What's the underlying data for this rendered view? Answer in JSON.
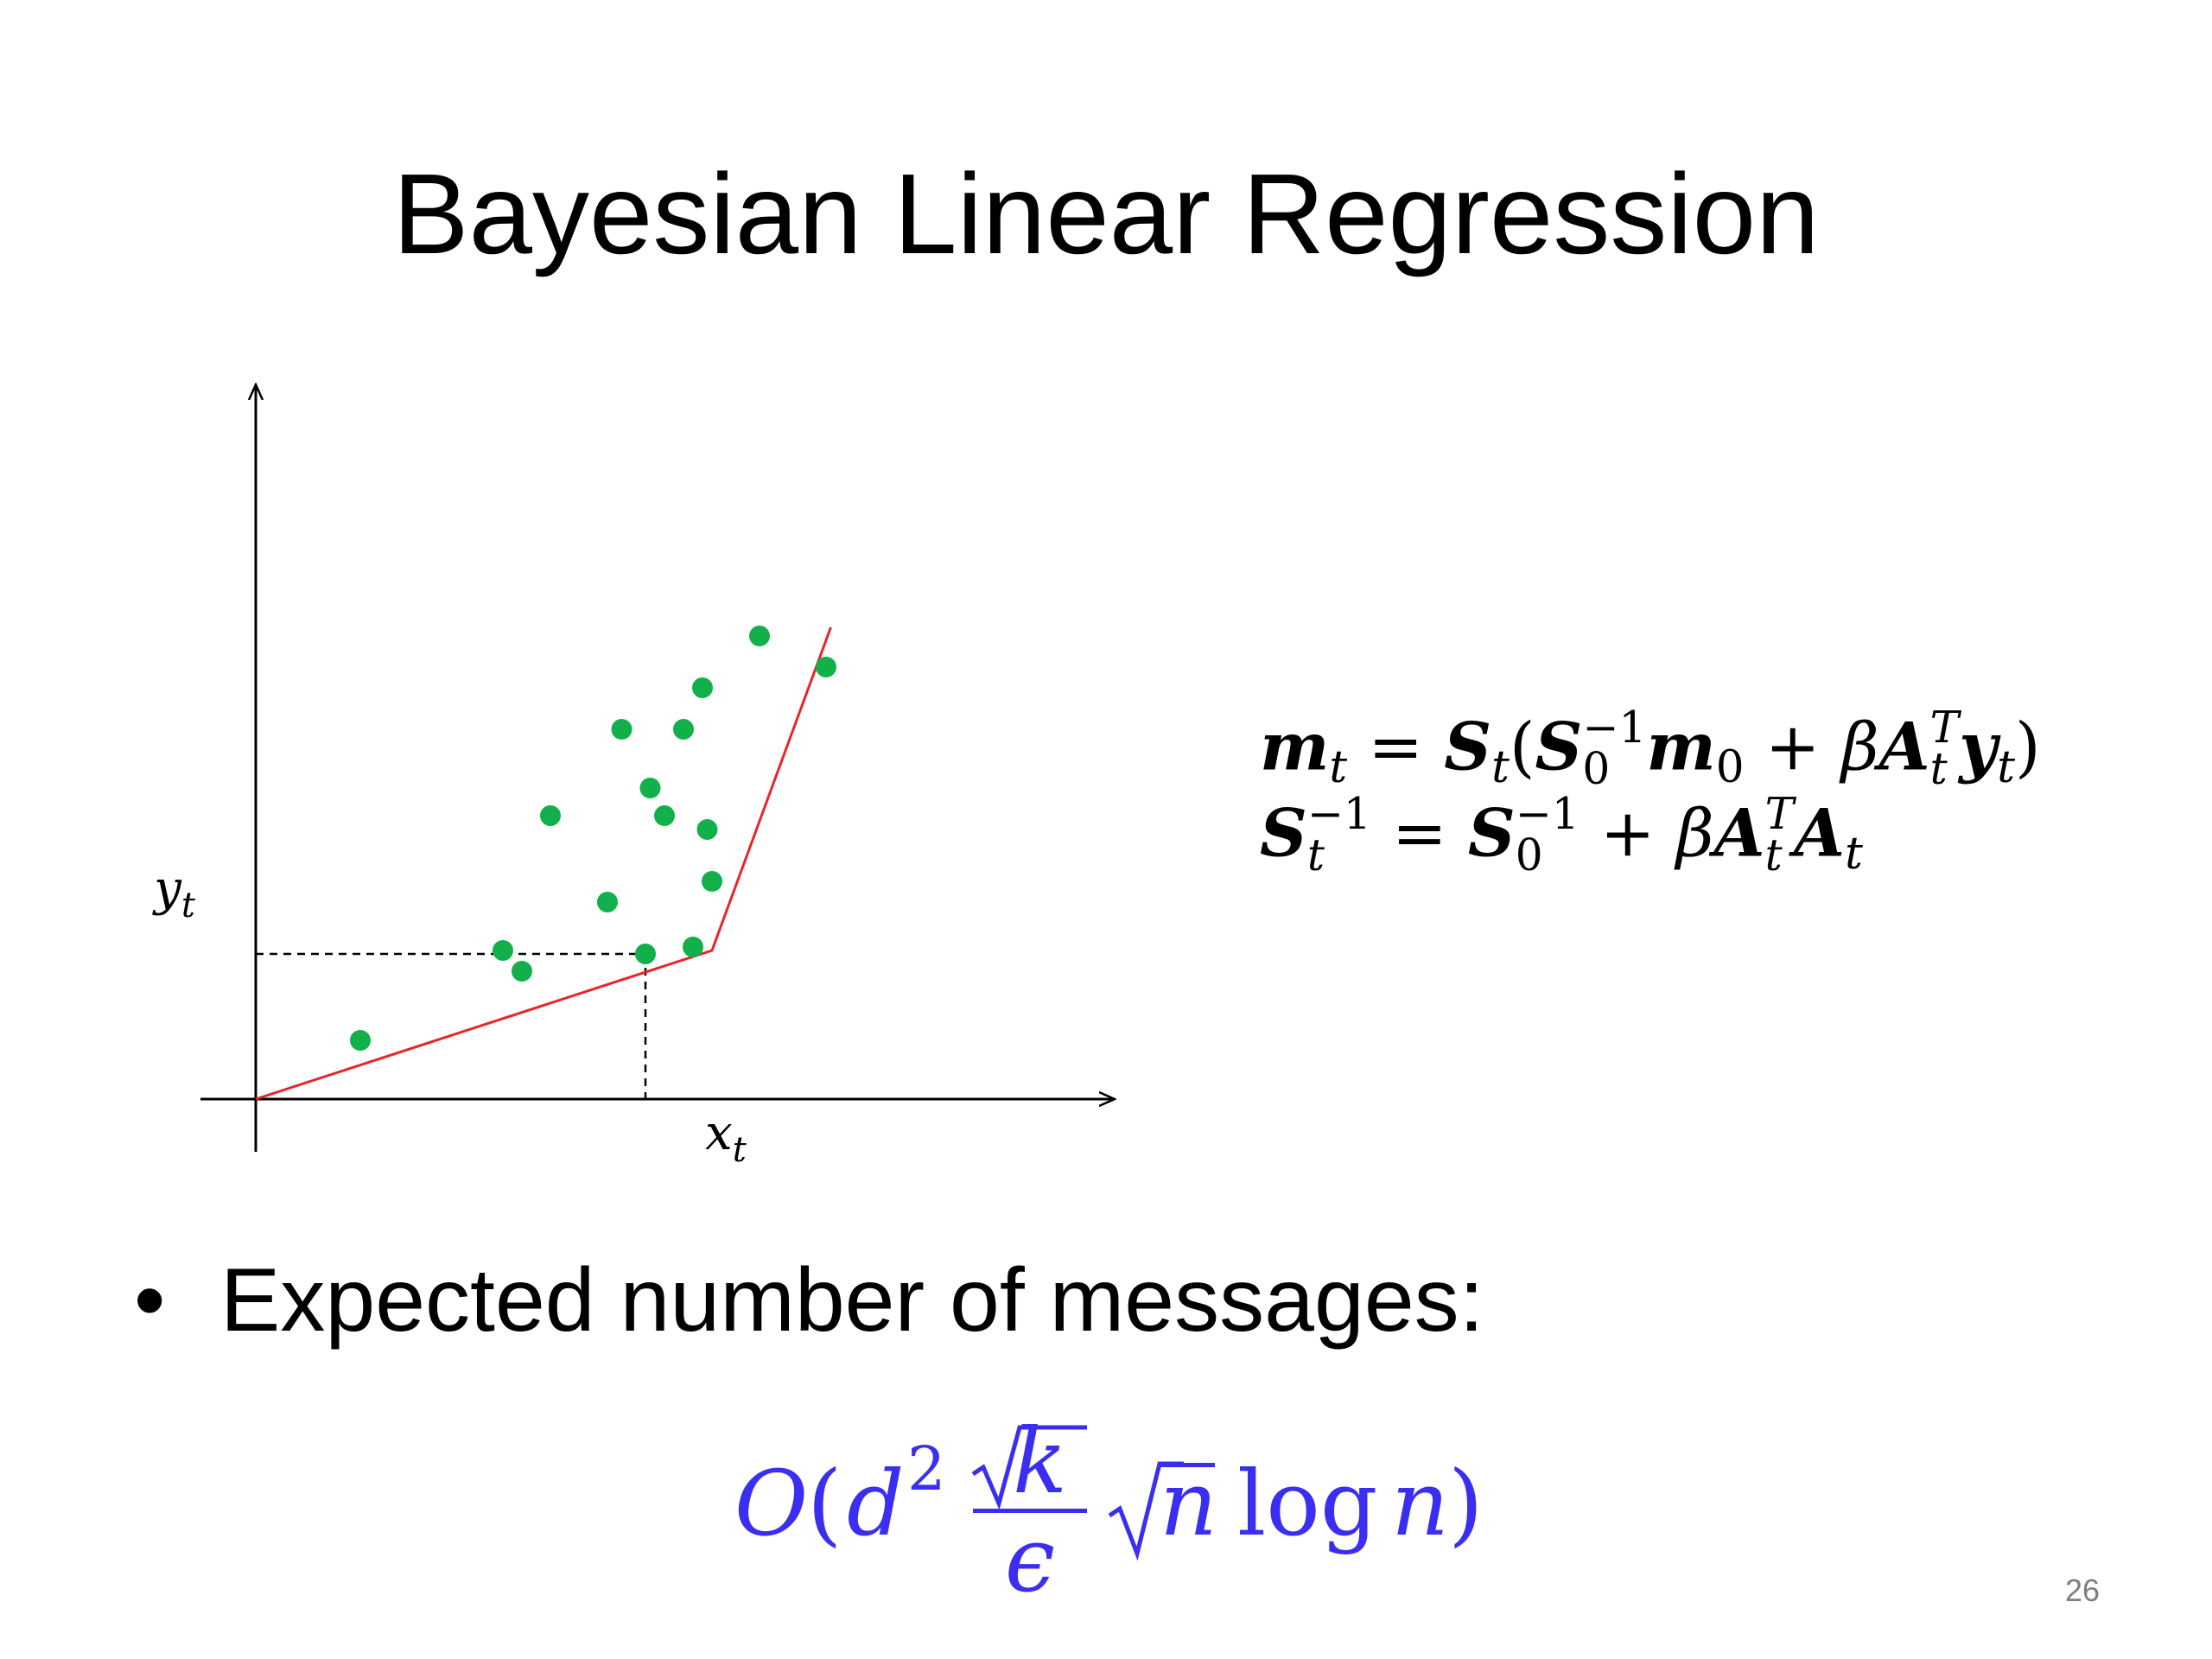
{
  "slide": {
    "title": "Bayesian Linear Regression",
    "page_number": "26",
    "bullet": {
      "symbol": "•",
      "text": "Expected number of messages:"
    }
  },
  "plot": {
    "x_label": "x",
    "x_label_sub": "t",
    "y_label": "y",
    "y_label_sub": "t",
    "point_color": "#12b04b",
    "line_color": "#e8262a",
    "axis_color": "#000000"
  },
  "chart_data": {
    "type": "scatter",
    "x": [
      1.1,
      2.6,
      2.8,
      3.1,
      3.7,
      3.85,
      4.1,
      4.15,
      4.3,
      4.5,
      4.6,
      4.7,
      4.75,
      4.8,
      5.3,
      6.0
    ],
    "y": [
      1.7,
      4.3,
      3.7,
      8.2,
      5.7,
      10.7,
      4.2,
      9.0,
      8.2,
      10.7,
      4.4,
      11.9,
      7.8,
      6.3,
      13.4,
      12.5
    ],
    "regression_line": {
      "x": [
        0,
        4.8,
        6.05
      ],
      "y": [
        0,
        4.3,
        13.65
      ]
    },
    "highlight": {
      "x": 4.1,
      "y": 4.2
    }
  },
  "equations": {
    "line1": {
      "lhs": "m",
      "lhs_sub": "t",
      "eq": "=",
      "S": "S",
      "S_sub": "t",
      "open": "(",
      "S0": "S",
      "S0_sub": "0",
      "S0_sup": "−1",
      "m0": "m",
      "m0_sub": "0",
      "plus": "+",
      "beta": "β",
      "A": "A",
      "A_sub": "t",
      "A_sup": "T",
      "y": "y",
      "y_sub": "t",
      "close": ")"
    },
    "line2": {
      "lhs": "S",
      "lhs_sub": "t",
      "lhs_sup": "−1",
      "eq": "=",
      "S0": "S",
      "S0_sub": "0",
      "S0_sup": "−1",
      "plus": "+",
      "beta": "β",
      "A": "A",
      "A_sub": "t",
      "A_sup": "T",
      "A2": "A",
      "A2_sub": "t"
    }
  },
  "complexity": {
    "O": "O",
    "open": "(",
    "d": "d",
    "d_sup": "2",
    "k": "k",
    "epsilon": "ϵ",
    "n": "n",
    "log": "log",
    "n2": "n",
    "close": ")",
    "color": "#3a2ff0"
  }
}
